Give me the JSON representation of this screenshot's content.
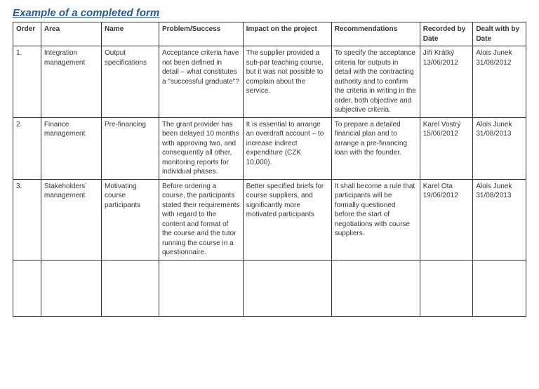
{
  "title": "Example of a completed form",
  "colors": {
    "title_color": "#2a5a8c",
    "border_color": "#333333",
    "text_color": "#333333",
    "background": "#ffffff"
  },
  "table": {
    "columns": [
      "Order",
      "Area",
      "Name",
      "Problem/Success",
      "Impact on the project",
      "Recommendations",
      "Recorded by\nDate",
      "Dealt with by\nDate"
    ],
    "rows": [
      {
        "order": "1.",
        "area": "Integration management",
        "name": "Output specifications",
        "problem": "Acceptance criteria have not been defined in detail – what constitutes a \"successful graduate\"?",
        "impact": "The supplier provided a sub-par teaching course, but it was not possible to complain about the service.",
        "recommend": "To specify the acceptance criteria for outputs in detail with the contracting authority and to confirm the criteria in writing in the order, both objective and subjective criteria.",
        "recorded": "Jiří Krátký 13/06/2012",
        "dealt": "Alois Junek 31/08/2012"
      },
      {
        "order": "2.",
        "area": "Finance management",
        "name": "Pre-financing",
        "problem": "The grant provider has been delayed 10 months with approving two, and consequently all other, monitoring reports for individual phases.",
        "impact": "It is essential to arrange an overdraft account – to increase indirect expenditure (CZK 10,000).",
        "recommend": "To prepare a detailed financial plan and to arrange a pre-financing loan with the founder.",
        "recorded": "Karel Vostrý 15/06/2012",
        "dealt": "Alois Junek 31/08/2013"
      },
      {
        "order": "3.",
        "area": "Stakeholders´ management",
        "name": "Motivating course participants",
        "problem": "Before ordering a course, the participants stated their requirements with regard to the content and format of the course and the tutor running the course in a questionnaire.",
        "impact": "Better specified briefs for course suppliers, and significantly more motivated participants",
        "recommend": "It shall become a rule that participants will be formally questioned before the start of negotiations with course suppliers.",
        "recorded": "Karel Ota 19/06/2012",
        "dealt": "Alois Junek 31/08/2013"
      }
    ]
  }
}
